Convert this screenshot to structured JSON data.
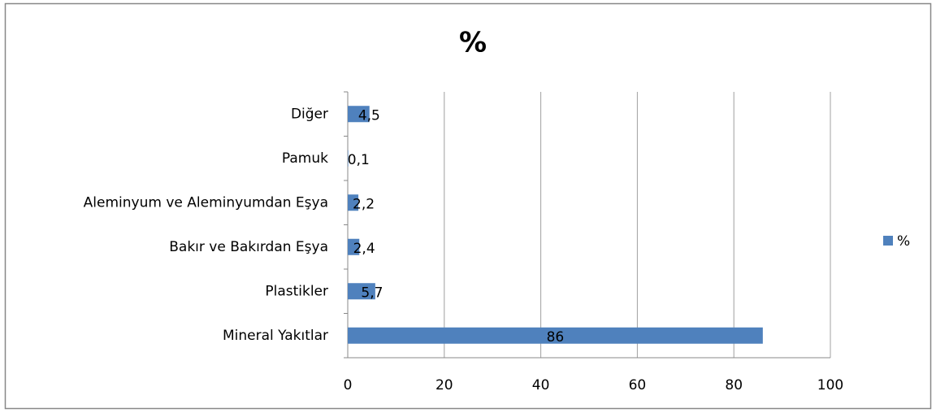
{
  "chart_data": {
    "type": "bar",
    "orientation": "horizontal",
    "title": "%",
    "categories": [
      "Diğer",
      "Pamuk",
      "Aleminyum ve Aleminyumdan Eşya",
      "Bakır ve Bakırdan Eşya",
      "Plastikler",
      "Mineral Yakıtlar"
    ],
    "series": [
      {
        "name": "%",
        "color": "#4f81bd",
        "values": [
          4.5,
          0.1,
          2.2,
          2.4,
          5.7,
          86
        ],
        "value_labels": [
          "4,5",
          "0,1",
          "2,2",
          "2,4",
          "5,7",
          "86"
        ]
      }
    ],
    "xlim": [
      0,
      100
    ],
    "xticks": [
      0,
      20,
      40,
      60,
      80,
      100
    ],
    "grid": true,
    "legend": "right"
  }
}
